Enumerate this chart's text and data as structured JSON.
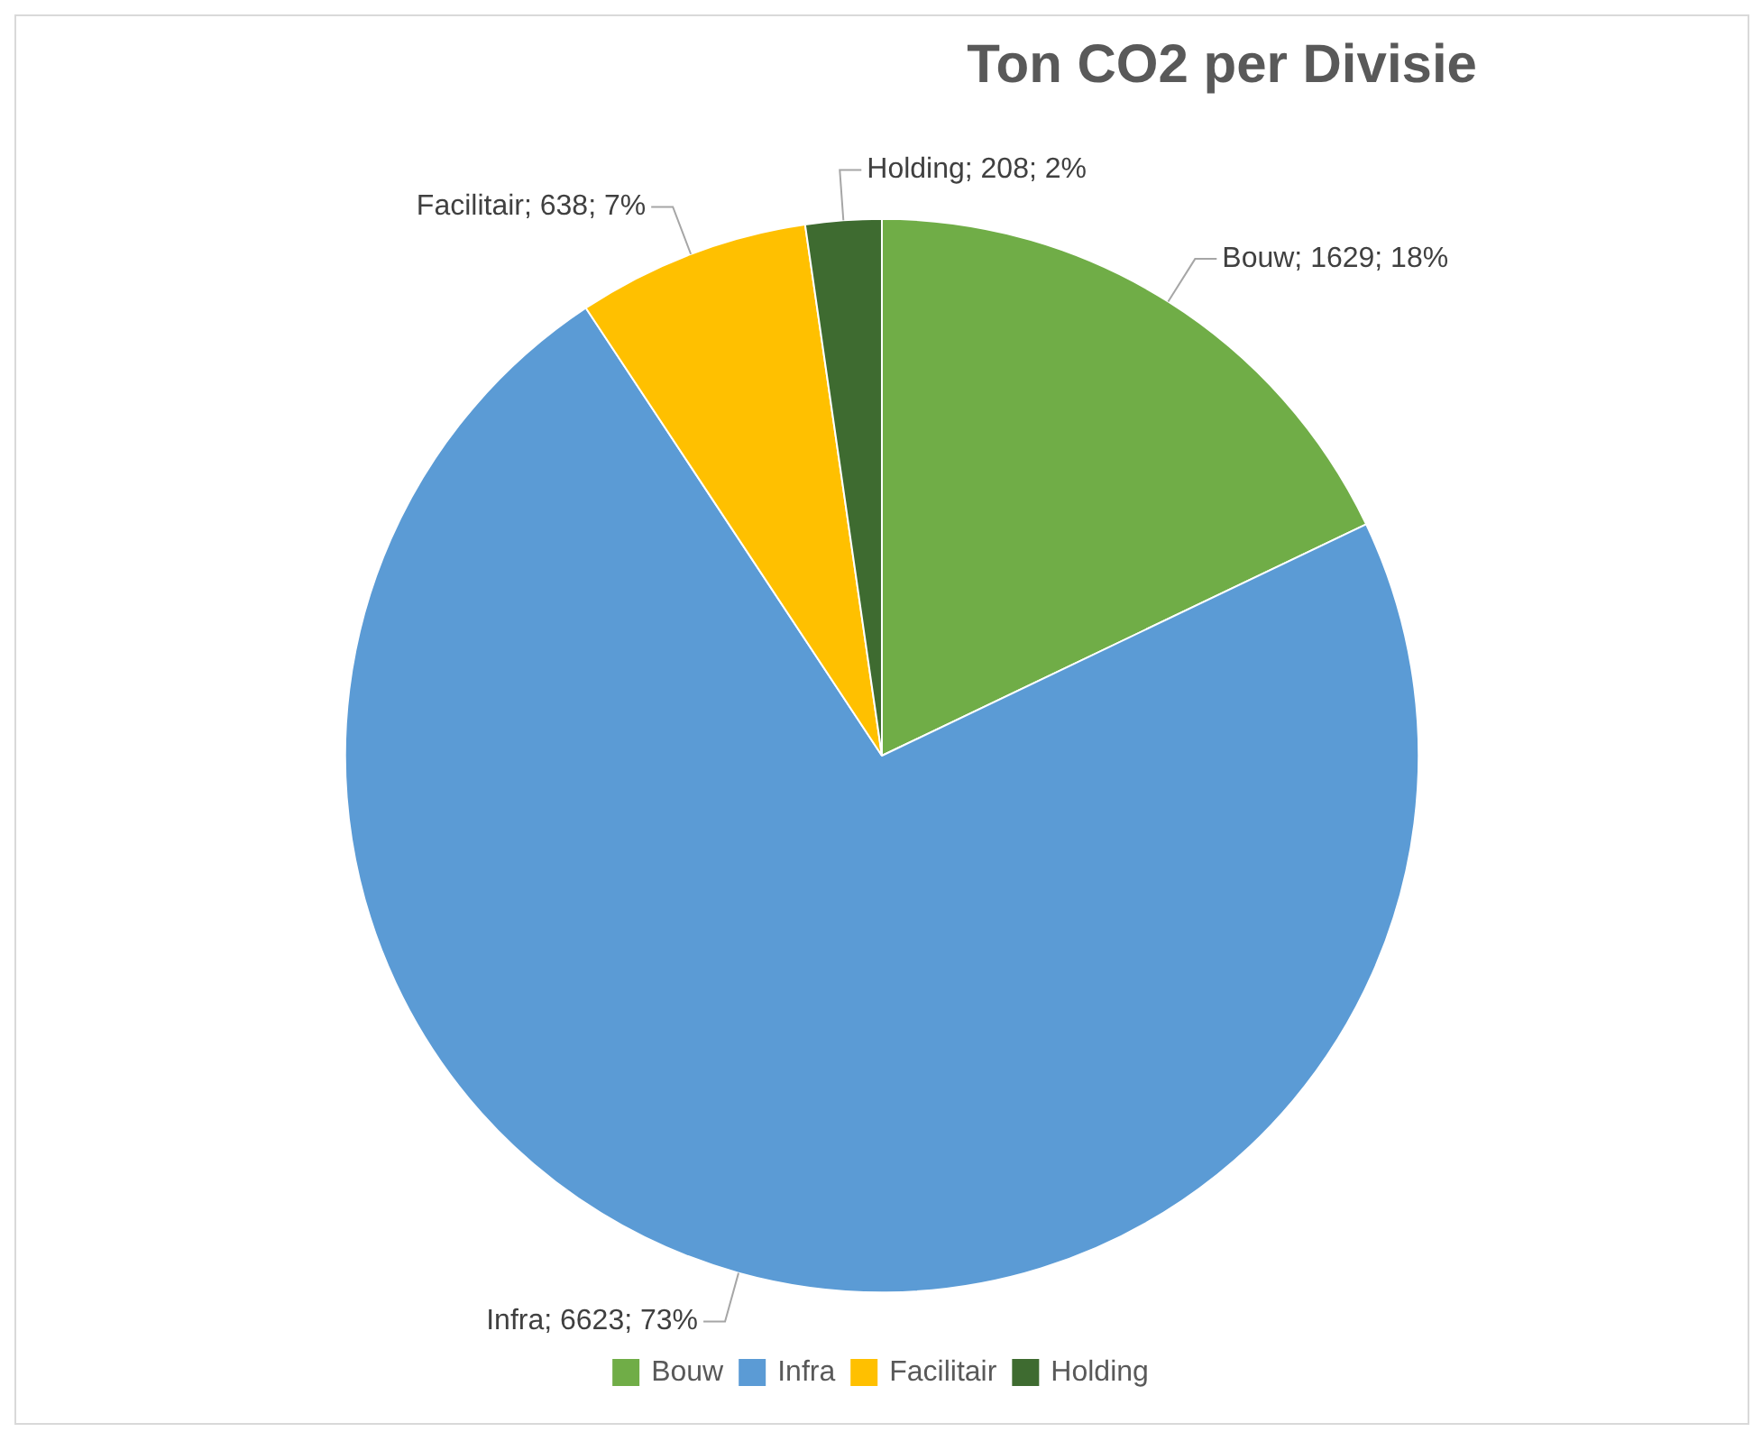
{
  "chart_data": {
    "type": "pie",
    "title": "Ton CO2 per Divisie",
    "categories": [
      "Bouw",
      "Infra",
      "Facilitair",
      "Holding"
    ],
    "values": [
      1629,
      6623,
      638,
      208
    ],
    "colors": [
      "#70ad47",
      "#5b9bd5",
      "#ffc000",
      "#3e6b30"
    ],
    "value_labels": [
      "Bouw; 1629; 18%",
      "Infra; 6623; 73%",
      "Facilitair; 638; 7%",
      "Holding; 208; 2%"
    ],
    "legend": "bottom"
  }
}
